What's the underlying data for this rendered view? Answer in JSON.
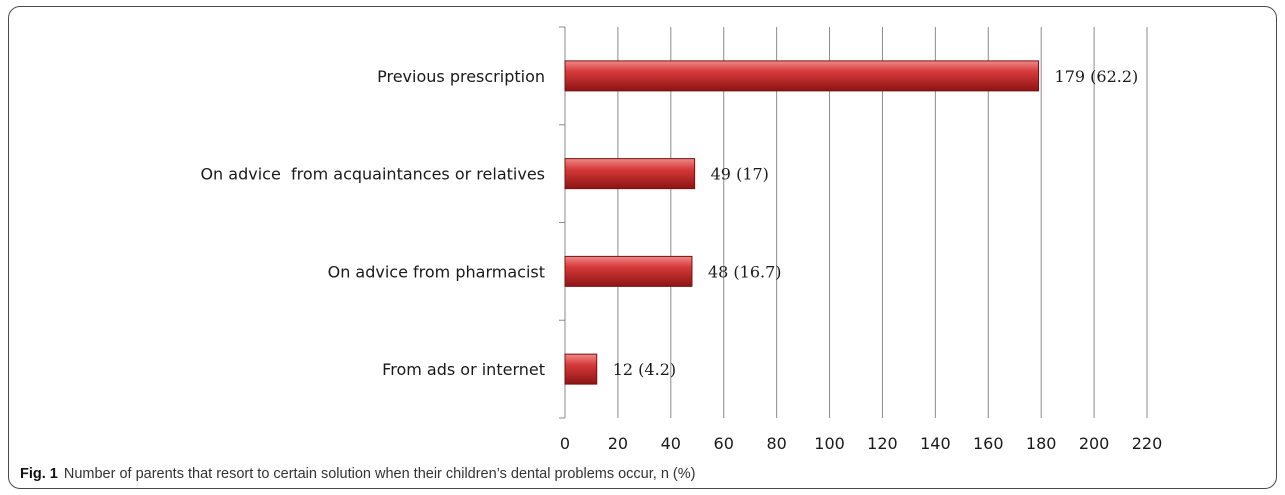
{
  "chart_data": {
    "type": "bar",
    "orientation": "horizontal",
    "categories": [
      "Previous prescription",
      "On advice  from acquaintances or relatives",
      "On advice from pharmacist",
      "From ads or internet"
    ],
    "values": [
      179,
      49,
      48,
      12
    ],
    "data_labels": [
      "179 (62.2)",
      "49 (17)",
      "48 (16.7)",
      "12 (4.2)"
    ],
    "xlim": [
      0,
      220
    ],
    "xticks": [
      0,
      20,
      40,
      60,
      80,
      100,
      120,
      140,
      160,
      180,
      200,
      220
    ],
    "grid": "vertical",
    "bar_color": "#c0282a"
  },
  "figure": {
    "label": "Fig. 1",
    "caption": "Number of parents that resort to certain solution when their children’s dental problems occur, n (%)"
  }
}
